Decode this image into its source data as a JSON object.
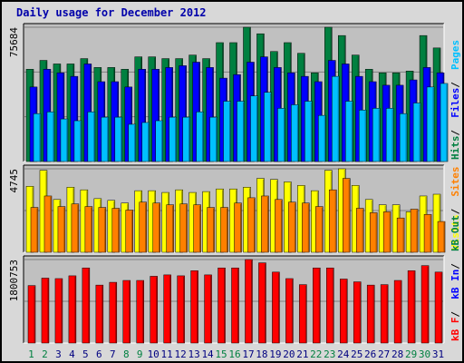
{
  "chart_data": {
    "type": "bar",
    "title": "Daily usage for December 2012",
    "colors": {
      "hits": "#008040",
      "files": "#0000ff",
      "pages": "#00c0ff",
      "visits": "#ffff00",
      "sites": "#ff8000",
      "kbin": "#008040",
      "kbout": "#0000ff",
      "kbf": "#ff0000",
      "weekend_day": "#008040",
      "weekday": "#000080",
      "title": "#0000aa"
    },
    "days": [
      "1",
      "2",
      "3",
      "4",
      "5",
      "6",
      "7",
      "8",
      "9",
      "10",
      "11",
      "12",
      "13",
      "14",
      "15",
      "16",
      "17",
      "18",
      "19",
      "20",
      "21",
      "22",
      "23",
      "24",
      "25",
      "26",
      "27",
      "28",
      "29",
      "30",
      "31"
    ],
    "weekend_days": [
      "1",
      "2",
      "8",
      "9",
      "15",
      "16",
      "22",
      "23",
      "29",
      "30"
    ],
    "panels": [
      {
        "name": "requests",
        "ymax_label": "75684",
        "ymax": 75684,
        "right_labels": [
          {
            "text": "Hits",
            "color": "#008040"
          },
          {
            "text": " / ",
            "color": "#000000"
          },
          {
            "text": "Files",
            "color": "#0000ff"
          },
          {
            "text": " / ",
            "color": "#000000"
          },
          {
            "text": "Pages",
            "color": "#00c0ff"
          }
        ],
        "series": [
          {
            "name": "Hits",
            "color": "#008040",
            "values": [
              52000,
              57000,
              55000,
              55000,
              58000,
              53000,
              53000,
              52000,
              59000,
              59000,
              58000,
              58000,
              60000,
              58000,
              67000,
              67000,
              75684,
              72000,
              62000,
              67000,
              61000,
              50000,
              75684,
              71000,
              60000,
              52000,
              50000,
              50000,
              51000,
              71000,
              64000
            ]
          },
          {
            "name": "Files",
            "color": "#0000ff",
            "values": [
              42000,
              52000,
              50000,
              48000,
              55000,
              45000,
              45000,
              42000,
              52000,
              52000,
              53000,
              54000,
              56000,
              53000,
              47000,
              49000,
              56000,
              59000,
              53000,
              50000,
              48000,
              45000,
              57000,
              55000,
              48000,
              45000,
              43000,
              43000,
              46000,
              53000,
              50000
            ]
          },
          {
            "name": "Pages",
            "color": "#00c0ff",
            "values": [
              27000,
              28000,
              24000,
              23000,
              28000,
              25000,
              25000,
              21000,
              22000,
              23000,
              25000,
              25000,
              28000,
              25000,
              34000,
              34000,
              37000,
              39000,
              30000,
              32000,
              34000,
              26000,
              48000,
              34000,
              29000,
              30000,
              30000,
              27000,
              33000,
              42000,
              44000
            ]
          }
        ]
      },
      {
        "name": "visitors",
        "ymax_label": "4745",
        "ymax": 4745,
        "right_labels": [
          {
            "text": "Visits",
            "color": "#ffff00"
          },
          {
            "text": " / ",
            "color": "#000000"
          },
          {
            "text": "Sites",
            "color": "#ff8000"
          }
        ],
        "series": [
          {
            "name": "Visits",
            "color": "#ffff00",
            "values": [
              3750,
              4660,
              3000,
              3700,
              3550,
              3050,
              2950,
              2800,
              3500,
              3500,
              3400,
              3550,
              3400,
              3450,
              3600,
              3600,
              3700,
              4200,
              4140,
              4000,
              3800,
              3500,
              4660,
              4745,
              3800,
              3000,
              2700,
              2700,
              2300,
              3200,
              3300
            ]
          },
          {
            "name": "Sites",
            "color": "#ff8000",
            "values": [
              2550,
              3200,
              2600,
              2750,
              2600,
              2550,
              2500,
              2400,
              2850,
              2800,
              2700,
              2750,
              2700,
              2550,
              2550,
              2800,
              3100,
              3200,
              3000,
              2850,
              2800,
              2600,
              3550,
              4200,
              2500,
              2250,
              2300,
              1950,
              2450,
              2150,
              1750
            ]
          }
        ]
      },
      {
        "name": "traffic",
        "ymax_label": "1800753",
        "ymax": 1800753,
        "right_labels": [
          {
            "text": "kB F",
            "color": "#ff0000"
          },
          {
            "text": " / ",
            "color": "#000000"
          },
          {
            "text": "kB In",
            "color": "#0000ff"
          },
          {
            "text": " / ",
            "color": "#000000"
          },
          {
            "text": "kB Out",
            "color": "#008040"
          }
        ],
        "series": [
          {
            "name": "kB F",
            "color": "#ff0000",
            "values": [
              1240000,
              1400000,
              1390000,
              1450000,
              1620000,
              1250000,
              1310000,
              1350000,
              1350000,
              1440000,
              1470000,
              1450000,
              1560000,
              1470000,
              1620000,
              1620000,
              1800753,
              1730000,
              1530000,
              1390000,
              1260000,
              1620000,
              1620000,
              1380000,
              1320000,
              1250000,
              1260000,
              1350000,
              1560000,
              1670000,
              1530000
            ]
          }
        ]
      }
    ]
  }
}
